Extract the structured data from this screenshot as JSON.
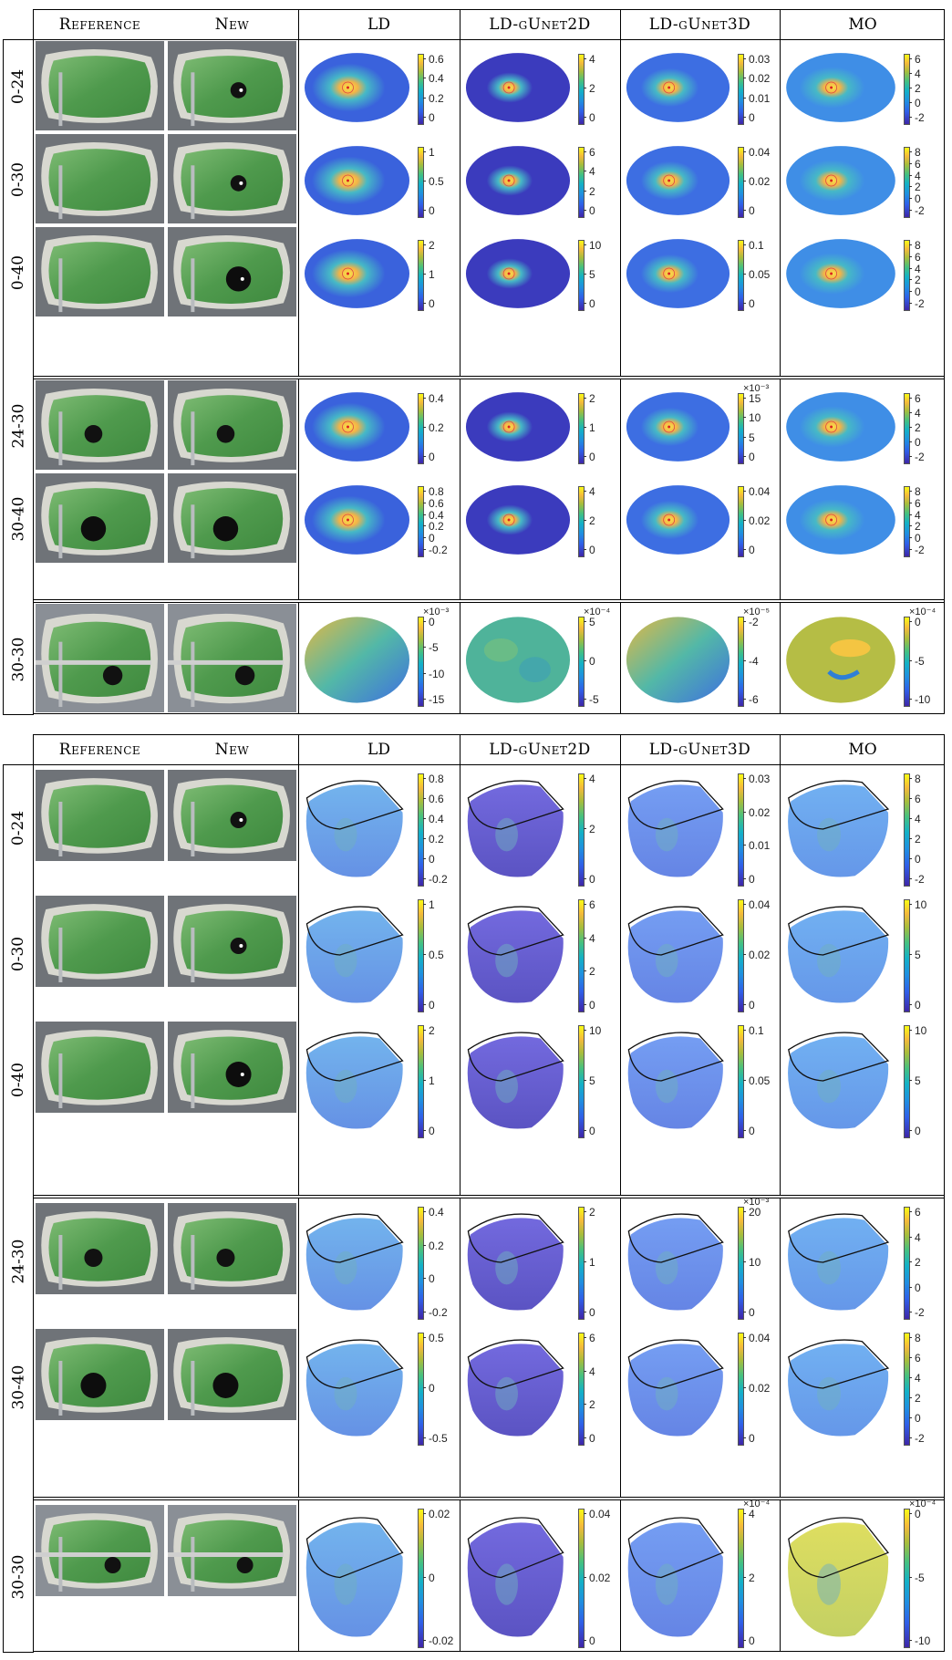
{
  "header": {
    "reference": "Reference",
    "new": "New",
    "methods": [
      "LD",
      "LD-gUnet2D",
      "LD-gUnet3D",
      "MO"
    ]
  },
  "panel_2d": {
    "rows": [
      {
        "label": "0-24",
        "ticks": [
          [
            "0.6",
            "0.4",
            "0.2",
            "0"
          ],
          [
            "4",
            "2",
            "0"
          ],
          [
            "0.03",
            "0.02",
            "0.01",
            "0"
          ],
          [
            "6",
            "4",
            "2",
            "0",
            "-2"
          ]
        ],
        "exps": [
          "",
          "",
          "",
          ""
        ]
      },
      {
        "label": "0-30",
        "ticks": [
          [
            "1",
            "0.5",
            "0"
          ],
          [
            "6",
            "4",
            "2",
            "0"
          ],
          [
            "0.04",
            "0.02",
            "0"
          ],
          [
            "8",
            "6",
            "4",
            "2",
            "0",
            "-2"
          ]
        ],
        "exps": [
          "",
          "",
          "",
          ""
        ]
      },
      {
        "label": "0-40",
        "ticks": [
          [
            "2",
            "1",
            "0"
          ],
          [
            "10",
            "5",
            "0"
          ],
          [
            "0.1",
            "0.05",
            "0"
          ],
          [
            "8",
            "6",
            "4",
            "2",
            "0",
            "-2"
          ]
        ],
        "exps": [
          "",
          "",
          "",
          ""
        ]
      },
      {
        "label": "24-30",
        "ticks": [
          [
            "0.4",
            "0.2",
            "0"
          ],
          [
            "2",
            "1",
            "0"
          ],
          [
            "15",
            "10",
            "5",
            "0"
          ],
          [
            "6",
            "4",
            "2",
            "0",
            "-2"
          ]
        ],
        "exps": [
          "",
          "",
          "×10⁻³",
          ""
        ]
      },
      {
        "label": "30-40",
        "ticks": [
          [
            "0.8",
            "0.6",
            "0.4",
            "0.2",
            "0",
            "-0.2"
          ],
          [
            "4",
            "2",
            "0"
          ],
          [
            "0.04",
            "0.02",
            "0"
          ],
          [
            "8",
            "6",
            "4",
            "2",
            "0",
            "-2"
          ]
        ],
        "exps": [
          "",
          "",
          "",
          ""
        ]
      },
      {
        "label": "30-30",
        "ticks": [
          [
            "0",
            "-5",
            "-10",
            "-15"
          ],
          [
            "5",
            "0",
            "-5"
          ],
          [
            "-2",
            "-4",
            "-6"
          ],
          [
            "0",
            "-5",
            "-10"
          ]
        ],
        "exps": [
          "×10⁻³",
          "×10⁻⁴",
          "×10⁻⁵",
          "×10⁻⁴"
        ]
      }
    ]
  },
  "panel_3d": {
    "rows": [
      {
        "label": "0-24",
        "ticks": [
          [
            "0.8",
            "0.6",
            "0.4",
            "0.2",
            "0",
            "-0.2"
          ],
          [
            "4",
            "2",
            "0"
          ],
          [
            "0.03",
            "0.02",
            "0.01",
            "0"
          ],
          [
            "8",
            "6",
            "4",
            "2",
            "0",
            "-2"
          ]
        ],
        "exps": [
          "",
          "",
          "",
          ""
        ]
      },
      {
        "label": "0-30",
        "ticks": [
          [
            "1",
            "0.5",
            "0"
          ],
          [
            "6",
            "4",
            "2",
            "0"
          ],
          [
            "0.04",
            "0.02",
            "0"
          ],
          [
            "10",
            "5",
            "0"
          ]
        ],
        "exps": [
          "",
          "",
          "",
          ""
        ]
      },
      {
        "label": "0-40",
        "ticks": [
          [
            "2",
            "1",
            "0"
          ],
          [
            "10",
            "5",
            "0"
          ],
          [
            "0.1",
            "0.05",
            "0"
          ],
          [
            "10",
            "5",
            "0"
          ]
        ],
        "exps": [
          "",
          "",
          "",
          ""
        ]
      },
      {
        "label": "24-30",
        "ticks": [
          [
            "0.4",
            "0.2",
            "0",
            "-0.2"
          ],
          [
            "2",
            "1",
            "0"
          ],
          [
            "20",
            "10",
            "0"
          ],
          [
            "6",
            "4",
            "2",
            "0",
            "-2"
          ]
        ],
        "exps": [
          "",
          "",
          "×10⁻³",
          ""
        ]
      },
      {
        "label": "30-40",
        "ticks": [
          [
            "0.5",
            "0",
            "-0.5"
          ],
          [
            "6",
            "4",
            "2",
            "0"
          ],
          [
            "0.04",
            "0.02",
            "0"
          ],
          [
            "8",
            "6",
            "4",
            "2",
            "0",
            "-2"
          ]
        ],
        "exps": [
          "",
          "",
          "",
          ""
        ]
      },
      {
        "label": "30-30",
        "ticks": [
          [
            "0.02",
            "0",
            "-0.02"
          ],
          [
            "0.04",
            "0.02",
            "0"
          ],
          [
            "4",
            "2",
            "0"
          ],
          [
            "0",
            "-5",
            "-10"
          ]
        ],
        "exps": [
          "",
          "",
          "×10⁻⁴",
          "×10⁻⁴"
        ]
      }
    ]
  }
}
